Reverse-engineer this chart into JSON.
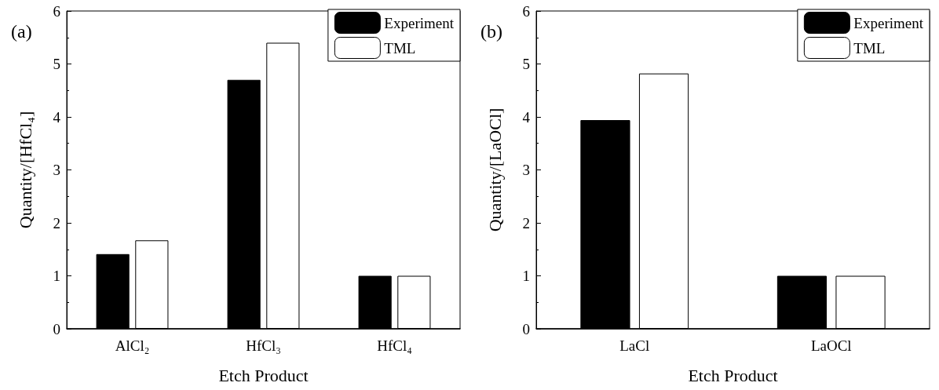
{
  "chart_data": [
    {
      "type": "bar",
      "annotations": [
        "(a)"
      ],
      "xlabel": "Etch Product",
      "ylabel": "Quantity/[HfCl₄]",
      "categories": [
        "AlCl₂",
        "HfCl₃",
        "HfCl₄"
      ],
      "series": [
        {
          "name": "Experiment",
          "color": "#000000",
          "values": [
            1.41,
            4.7,
            1.0
          ]
        },
        {
          "name": "TML",
          "color": "#ffffff",
          "values": [
            1.67,
            5.4,
            1.0
          ]
        }
      ],
      "ylim": [
        0,
        6
      ],
      "yticks": [
        0,
        1,
        2,
        3,
        4,
        5,
        6
      ],
      "grid": false,
      "legend": "top right"
    },
    {
      "type": "bar",
      "annotations": [
        "(b)"
      ],
      "xlabel": "Etch Product",
      "ylabel": "Quantity/[LaOCl]",
      "categories": [
        "LaCl",
        "LaOCl"
      ],
      "series": [
        {
          "name": "Experiment",
          "color": "#000000",
          "values": [
            3.94,
            1.0
          ]
        },
        {
          "name": "TML",
          "color": "#ffffff",
          "values": [
            4.82,
            1.0
          ]
        }
      ],
      "ylim": [
        0,
        6
      ],
      "yticks": [
        0,
        1,
        2,
        3,
        4,
        5,
        6
      ],
      "grid": false,
      "legend": "top right"
    }
  ]
}
